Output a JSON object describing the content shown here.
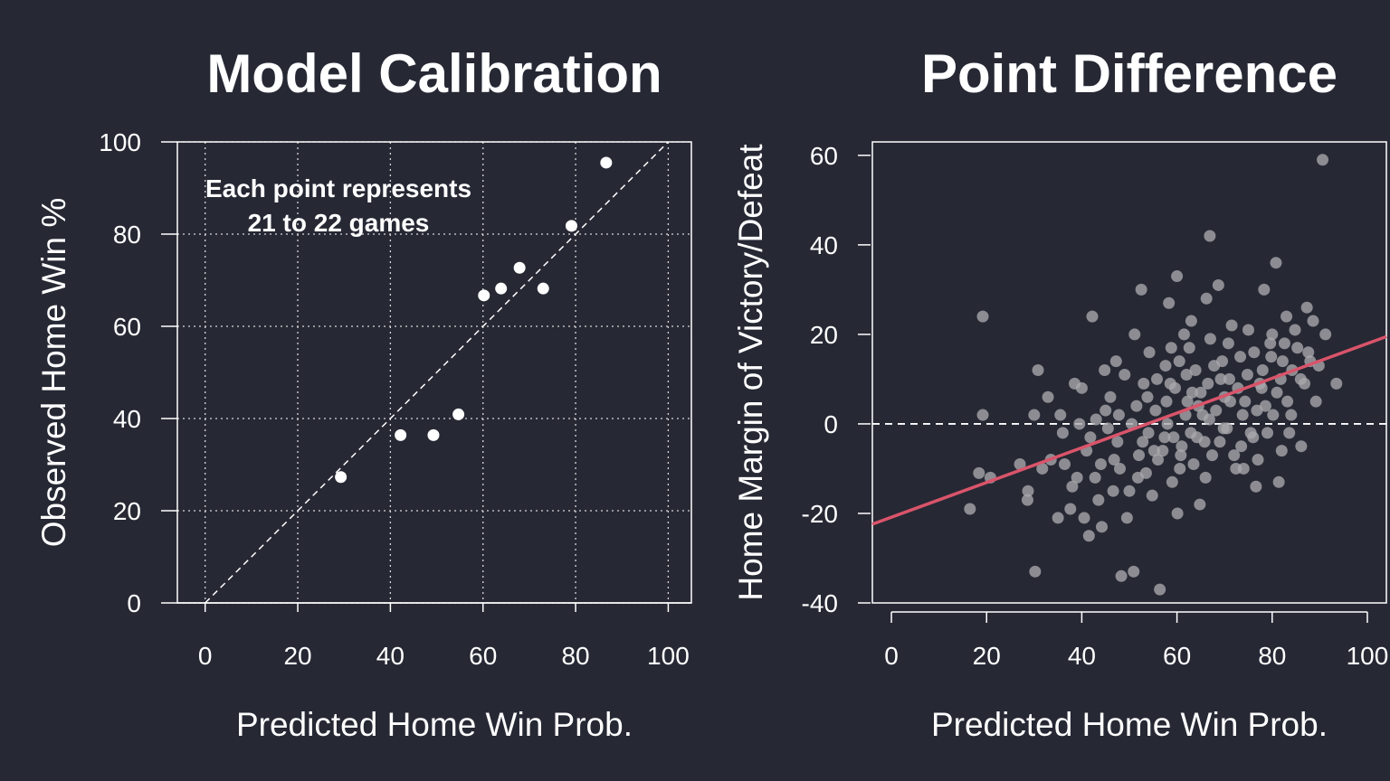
{
  "chart_data": [
    {
      "type": "scatter",
      "title": "Model Calibration",
      "xlabel": "Predicted Home Win Prob.",
      "ylabel": "Observed Home Win %",
      "xlim": [
        -6,
        105
      ],
      "ylim": [
        0,
        100
      ],
      "xticks": [
        0,
        20,
        40,
        60,
        80,
        100
      ],
      "yticks": [
        0,
        20,
        40,
        60,
        80,
        100
      ],
      "grid": true,
      "reference_line": "y = x (dashed)",
      "annotation": [
        "Each point represents",
        "21 to 22 games"
      ],
      "point_color": "#ffffff",
      "points": [
        {
          "x": 29.3,
          "y": 27.3
        },
        {
          "x": 42.2,
          "y": 36.4
        },
        {
          "x": 49.3,
          "y": 36.4
        },
        {
          "x": 54.7,
          "y": 40.9
        },
        {
          "x": 60.2,
          "y": 66.7
        },
        {
          "x": 63.9,
          "y": 68.2
        },
        {
          "x": 67.9,
          "y": 72.7
        },
        {
          "x": 73.0,
          "y": 68.2
        },
        {
          "x": 79.1,
          "y": 81.8
        },
        {
          "x": 86.6,
          "y": 95.5
        }
      ]
    },
    {
      "type": "scatter",
      "title": "Point Difference",
      "xlabel": "Predicted Home Win Prob.",
      "ylabel": "Home Margin of Victory/Defeat",
      "xlim": [
        -4,
        104
      ],
      "ylim": [
        -40,
        63
      ],
      "xticks": [
        0,
        20,
        40,
        60,
        80,
        100
      ],
      "yticks": [
        -40,
        -20,
        0,
        20,
        40,
        60
      ],
      "grid": false,
      "zero_line": "y = 0 (dashed)",
      "point_color": "#a9a9ad",
      "regression_line": {
        "color": "#d9546a",
        "intercept": -20.85,
        "slope": 0.388
      },
      "points": [
        {
          "x": 16.5,
          "y": -19
        },
        {
          "x": 19.2,
          "y": 24
        },
        {
          "x": 19.2,
          "y": 2
        },
        {
          "x": 18.4,
          "y": -11
        },
        {
          "x": 20.8,
          "y": -12
        },
        {
          "x": 28.7,
          "y": -15
        },
        {
          "x": 30.2,
          "y": -33
        },
        {
          "x": 30.0,
          "y": 2
        },
        {
          "x": 32.9,
          "y": 6
        },
        {
          "x": 30.8,
          "y": 12
        },
        {
          "x": 28.6,
          "y": -17
        },
        {
          "x": 31.7,
          "y": -10
        },
        {
          "x": 35.0,
          "y": -21
        },
        {
          "x": 36.4,
          "y": -9
        },
        {
          "x": 38.5,
          "y": 9
        },
        {
          "x": 37.6,
          "y": -19
        },
        {
          "x": 40.0,
          "y": 8
        },
        {
          "x": 42.2,
          "y": 24
        },
        {
          "x": 41.5,
          "y": -25
        },
        {
          "x": 43.5,
          "y": -17
        },
        {
          "x": 44.2,
          "y": -23
        },
        {
          "x": 45.0,
          "y": 3
        },
        {
          "x": 46.6,
          "y": -15
        },
        {
          "x": 47.2,
          "y": 14
        },
        {
          "x": 48.3,
          "y": -34
        },
        {
          "x": 50.0,
          "y": -15
        },
        {
          "x": 50.9,
          "y": -33
        },
        {
          "x": 51.1,
          "y": 20
        },
        {
          "x": 52.0,
          "y": -7
        },
        {
          "x": 52.5,
          "y": 30
        },
        {
          "x": 53.5,
          "y": -11
        },
        {
          "x": 54.2,
          "y": 16
        },
        {
          "x": 55.5,
          "y": 3
        },
        {
          "x": 56.4,
          "y": -37
        },
        {
          "x": 57.4,
          "y": -3
        },
        {
          "x": 58.3,
          "y": 27
        },
        {
          "x": 58.8,
          "y": 17
        },
        {
          "x": 59.6,
          "y": 8
        },
        {
          "x": 60.0,
          "y": 33
        },
        {
          "x": 60.1,
          "y": -20
        },
        {
          "x": 60.6,
          "y": -10
        },
        {
          "x": 61.5,
          "y": 20
        },
        {
          "x": 62.2,
          "y": 5
        },
        {
          "x": 62.9,
          "y": -2
        },
        {
          "x": 63.9,
          "y": 12
        },
        {
          "x": 64.8,
          "y": -18
        },
        {
          "x": 65.4,
          "y": 2
        },
        {
          "x": 66.2,
          "y": 28
        },
        {
          "x": 66.9,
          "y": 42
        },
        {
          "x": 67.4,
          "y": -7
        },
        {
          "x": 68.7,
          "y": 31
        },
        {
          "x": 69.5,
          "y": 14
        },
        {
          "x": 70.5,
          "y": -1
        },
        {
          "x": 71.0,
          "y": 10
        },
        {
          "x": 72.4,
          "y": -10
        },
        {
          "x": 73.3,
          "y": 15
        },
        {
          "x": 74.3,
          "y": 5
        },
        {
          "x": 75.0,
          "y": 21
        },
        {
          "x": 76.0,
          "y": -3
        },
        {
          "x": 76.6,
          "y": -14
        },
        {
          "x": 77.8,
          "y": 8
        },
        {
          "x": 78.3,
          "y": 30
        },
        {
          "x": 79.6,
          "y": 18
        },
        {
          "x": 80.2,
          "y": 2
        },
        {
          "x": 80.8,
          "y": 36
        },
        {
          "x": 81.4,
          "y": -13
        },
        {
          "x": 82.2,
          "y": 14
        },
        {
          "x": 83.0,
          "y": 24
        },
        {
          "x": 84.2,
          "y": 12
        },
        {
          "x": 85.3,
          "y": 17
        },
        {
          "x": 86.1,
          "y": -5
        },
        {
          "x": 87.3,
          "y": 26
        },
        {
          "x": 88.0,
          "y": 14
        },
        {
          "x": 88.6,
          "y": 23
        },
        {
          "x": 89.2,
          "y": 5
        },
        {
          "x": 90.6,
          "y": 59
        },
        {
          "x": 91.2,
          "y": 20
        },
        {
          "x": 93.5,
          "y": 9
        },
        {
          "x": 27.0,
          "y": -9
        },
        {
          "x": 33.5,
          "y": -8
        },
        {
          "x": 36.0,
          "y": -2
        },
        {
          "x": 39.0,
          "y": -12
        },
        {
          "x": 41.0,
          "y": -6
        },
        {
          "x": 43.0,
          "y": 1
        },
        {
          "x": 44.0,
          "y": -9
        },
        {
          "x": 46.0,
          "y": 6
        },
        {
          "x": 47.5,
          "y": -4
        },
        {
          "x": 49.0,
          "y": 11
        },
        {
          "x": 49.5,
          "y": -21
        },
        {
          "x": 51.5,
          "y": 4
        },
        {
          "x": 53.0,
          "y": 9
        },
        {
          "x": 54.8,
          "y": -16
        },
        {
          "x": 55.8,
          "y": 10
        },
        {
          "x": 57.0,
          "y": -6
        },
        {
          "x": 57.8,
          "y": 5
        },
        {
          "x": 59.0,
          "y": -13
        },
        {
          "x": 61.0,
          "y": -5
        },
        {
          "x": 62.0,
          "y": 11
        },
        {
          "x": 63.0,
          "y": 23
        },
        {
          "x": 64.2,
          "y": -3
        },
        {
          "x": 65.0,
          "y": 7
        },
        {
          "x": 66.0,
          "y": -12
        },
        {
          "x": 67.0,
          "y": 19
        },
        {
          "x": 68.2,
          "y": 3
        },
        {
          "x": 69.0,
          "y": -4
        },
        {
          "x": 70.0,
          "y": 6
        },
        {
          "x": 71.5,
          "y": 22
        },
        {
          "x": 72.0,
          "y": -7
        },
        {
          "x": 73.8,
          "y": 2
        },
        {
          "x": 74.8,
          "y": 11
        },
        {
          "x": 76.2,
          "y": 16
        },
        {
          "x": 77.0,
          "y": -8
        },
        {
          "x": 78.0,
          "y": 12
        },
        {
          "x": 79.0,
          "y": -2
        },
        {
          "x": 80.0,
          "y": 20
        },
        {
          "x": 81.0,
          "y": 7
        },
        {
          "x": 82.0,
          "y": -6
        },
        {
          "x": 83.2,
          "y": 5
        },
        {
          "x": 84.8,
          "y": 21
        },
        {
          "x": 86.0,
          "y": 10
        },
        {
          "x": 87.6,
          "y": 16
        },
        {
          "x": 89.8,
          "y": 13
        },
        {
          "x": 45.5,
          "y": -1
        },
        {
          "x": 48.0,
          "y": -10
        },
        {
          "x": 50.5,
          "y": 0
        },
        {
          "x": 52.8,
          "y": -4
        },
        {
          "x": 56.0,
          "y": -8
        },
        {
          "x": 58.0,
          "y": 0
        },
        {
          "x": 60.5,
          "y": 14
        },
        {
          "x": 63.5,
          "y": -9
        },
        {
          "x": 66.5,
          "y": 9
        },
        {
          "x": 69.8,
          "y": -1
        },
        {
          "x": 72.8,
          "y": 8
        },
        {
          "x": 75.5,
          "y": -2
        },
        {
          "x": 78.6,
          "y": 4
        },
        {
          "x": 81.8,
          "y": 10
        },
        {
          "x": 84.0,
          "y": 2
        },
        {
          "x": 42.8,
          "y": -12
        },
        {
          "x": 46.8,
          "y": -8
        },
        {
          "x": 51.8,
          "y": -12
        },
        {
          "x": 54.0,
          "y": -2
        },
        {
          "x": 59.3,
          "y": -3
        },
        {
          "x": 61.8,
          "y": 2
        },
        {
          "x": 64.5,
          "y": 4
        },
        {
          "x": 67.8,
          "y": 13
        },
        {
          "x": 70.8,
          "y": 18
        },
        {
          "x": 73.5,
          "y": -5
        },
        {
          "x": 38.0,
          "y": -14
        },
        {
          "x": 40.5,
          "y": -21
        },
        {
          "x": 35.5,
          "y": 2
        },
        {
          "x": 44.8,
          "y": 12
        },
        {
          "x": 53.8,
          "y": 6
        },
        {
          "x": 57.6,
          "y": 13
        },
        {
          "x": 62.6,
          "y": 17
        },
        {
          "x": 65.8,
          "y": -4
        },
        {
          "x": 71.2,
          "y": 5
        },
        {
          "x": 76.8,
          "y": 3
        },
        {
          "x": 79.8,
          "y": 15
        },
        {
          "x": 83.6,
          "y": -2
        },
        {
          "x": 86.8,
          "y": 9
        },
        {
          "x": 39.5,
          "y": 0
        },
        {
          "x": 41.8,
          "y": -3
        },
        {
          "x": 47.8,
          "y": 2
        },
        {
          "x": 55.2,
          "y": -6
        },
        {
          "x": 58.6,
          "y": 9
        },
        {
          "x": 60.8,
          "y": -7
        },
        {
          "x": 63.2,
          "y": 7
        },
        {
          "x": 66.8,
          "y": 1
        },
        {
          "x": 69.2,
          "y": 10
        },
        {
          "x": 74.0,
          "y": -10
        },
        {
          "x": 77.4,
          "y": 9
        },
        {
          "x": 82.6,
          "y": 18
        }
      ]
    }
  ]
}
